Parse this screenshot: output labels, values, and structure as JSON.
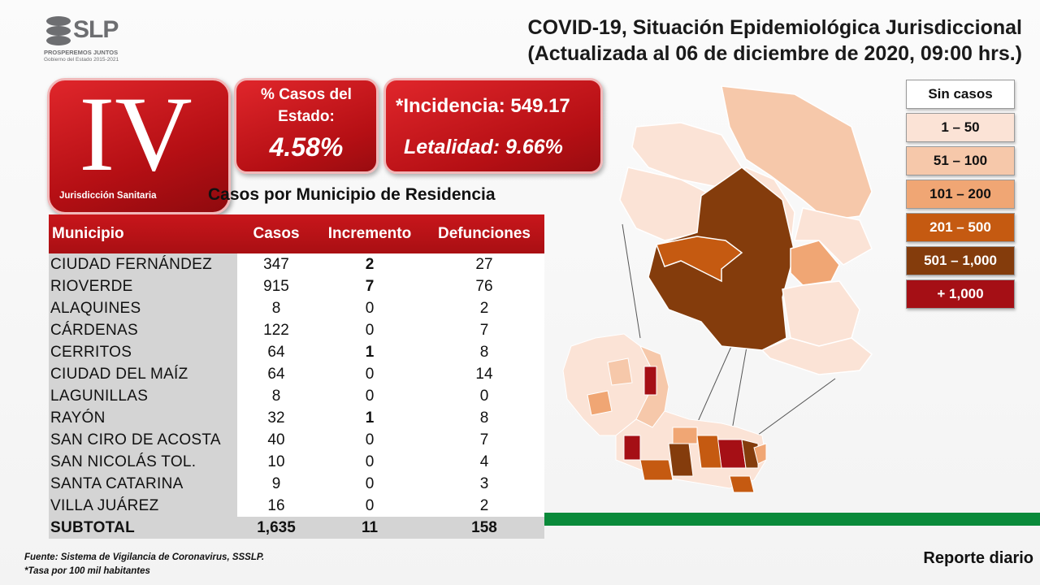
{
  "logo": {
    "name": "SLP",
    "line1": "PROSPEREMOS JUNTOS",
    "line2": "Gobierno del Estado 2015-2021"
  },
  "header": {
    "title_line1": "COVID-19, Situación Epidemiológica Jurisdiccional",
    "title_line2": "(Actualizada al 06 de diciembre de 2020, 09:00 hrs.)"
  },
  "jurisdiction": {
    "numeral": "IV",
    "label": "Jurisdicción Sanitaria"
  },
  "stats": {
    "pct_label": "% Casos del Estado:",
    "pct_value": "4.58%",
    "incidence": "*Incidencia: 549.17",
    "lethality": "Letalidad: 9.66%"
  },
  "table": {
    "caption": "Casos por Municipio  de Residencia",
    "headers": [
      "Municipio",
      "Casos",
      "Incremento",
      "Defunciones"
    ],
    "rows": [
      {
        "municipio": "CIUDAD FERNÁNDEZ",
        "casos": "347",
        "incremento": "2",
        "defunciones": "27",
        "inc_bold": true
      },
      {
        "municipio": "RIOVERDE",
        "casos": "915",
        "incremento": "7",
        "defunciones": "76",
        "inc_bold": true
      },
      {
        "municipio": "ALAQUINES",
        "casos": "8",
        "incremento": "0",
        "defunciones": "2",
        "inc_bold": false
      },
      {
        "municipio": "CÁRDENAS",
        "casos": "122",
        "incremento": "0",
        "defunciones": "7",
        "inc_bold": false
      },
      {
        "municipio": "CERRITOS",
        "casos": "64",
        "incremento": "1",
        "defunciones": "8",
        "inc_bold": true
      },
      {
        "municipio": "CIUDAD DEL MAÍZ",
        "casos": "64",
        "incremento": "0",
        "defunciones": "14",
        "inc_bold": false
      },
      {
        "municipio": "LAGUNILLAS",
        "casos": "8",
        "incremento": "0",
        "defunciones": "0",
        "inc_bold": false
      },
      {
        "municipio": "RAYÓN",
        "casos": "32",
        "incremento": "1",
        "defunciones": "8",
        "inc_bold": true
      },
      {
        "municipio": "SAN CIRO DE ACOSTA",
        "casos": "40",
        "incremento": "0",
        "defunciones": "7",
        "inc_bold": false
      },
      {
        "municipio": "SAN NICOLÁS TOL.",
        "casos": "10",
        "incremento": "0",
        "defunciones": "4",
        "inc_bold": false
      },
      {
        "municipio": "SANTA CATARINA",
        "casos": "9",
        "incremento": "0",
        "defunciones": "3",
        "inc_bold": false
      },
      {
        "municipio": "VILLA JUÁREZ",
        "casos": "16",
        "incremento": "0",
        "defunciones": "2",
        "inc_bold": false
      }
    ],
    "total": {
      "municipio": "SUBTOTAL",
      "casos": "1,635",
      "incremento": "11",
      "defunciones": "158"
    }
  },
  "legend": [
    {
      "label": "Sin casos",
      "color": "#ffffff",
      "text_color": "#111111"
    },
    {
      "label": "1 – 50",
      "color": "#fbe3d6",
      "text_color": "#111111"
    },
    {
      "label": "51 – 100",
      "color": "#f6c8aa",
      "text_color": "#111111"
    },
    {
      "label": "101 – 200",
      "color": "#f0a674",
      "text_color": "#111111"
    },
    {
      "label": "201 – 500",
      "color": "#c55a11",
      "text_color": "#ffffff"
    },
    {
      "label": "501 – 1,000",
      "color": "#843c0c",
      "text_color": "#ffffff"
    },
    {
      "label": "+ 1,000",
      "color": "#a50f15",
      "text_color": "#ffffff"
    }
  ],
  "footer": {
    "source": "Fuente: Sistema de Vigilancia de Coronavirus, SSSLP.",
    "note": "*Tasa por 100 mil habitantes",
    "report": "Reporte diario"
  }
}
